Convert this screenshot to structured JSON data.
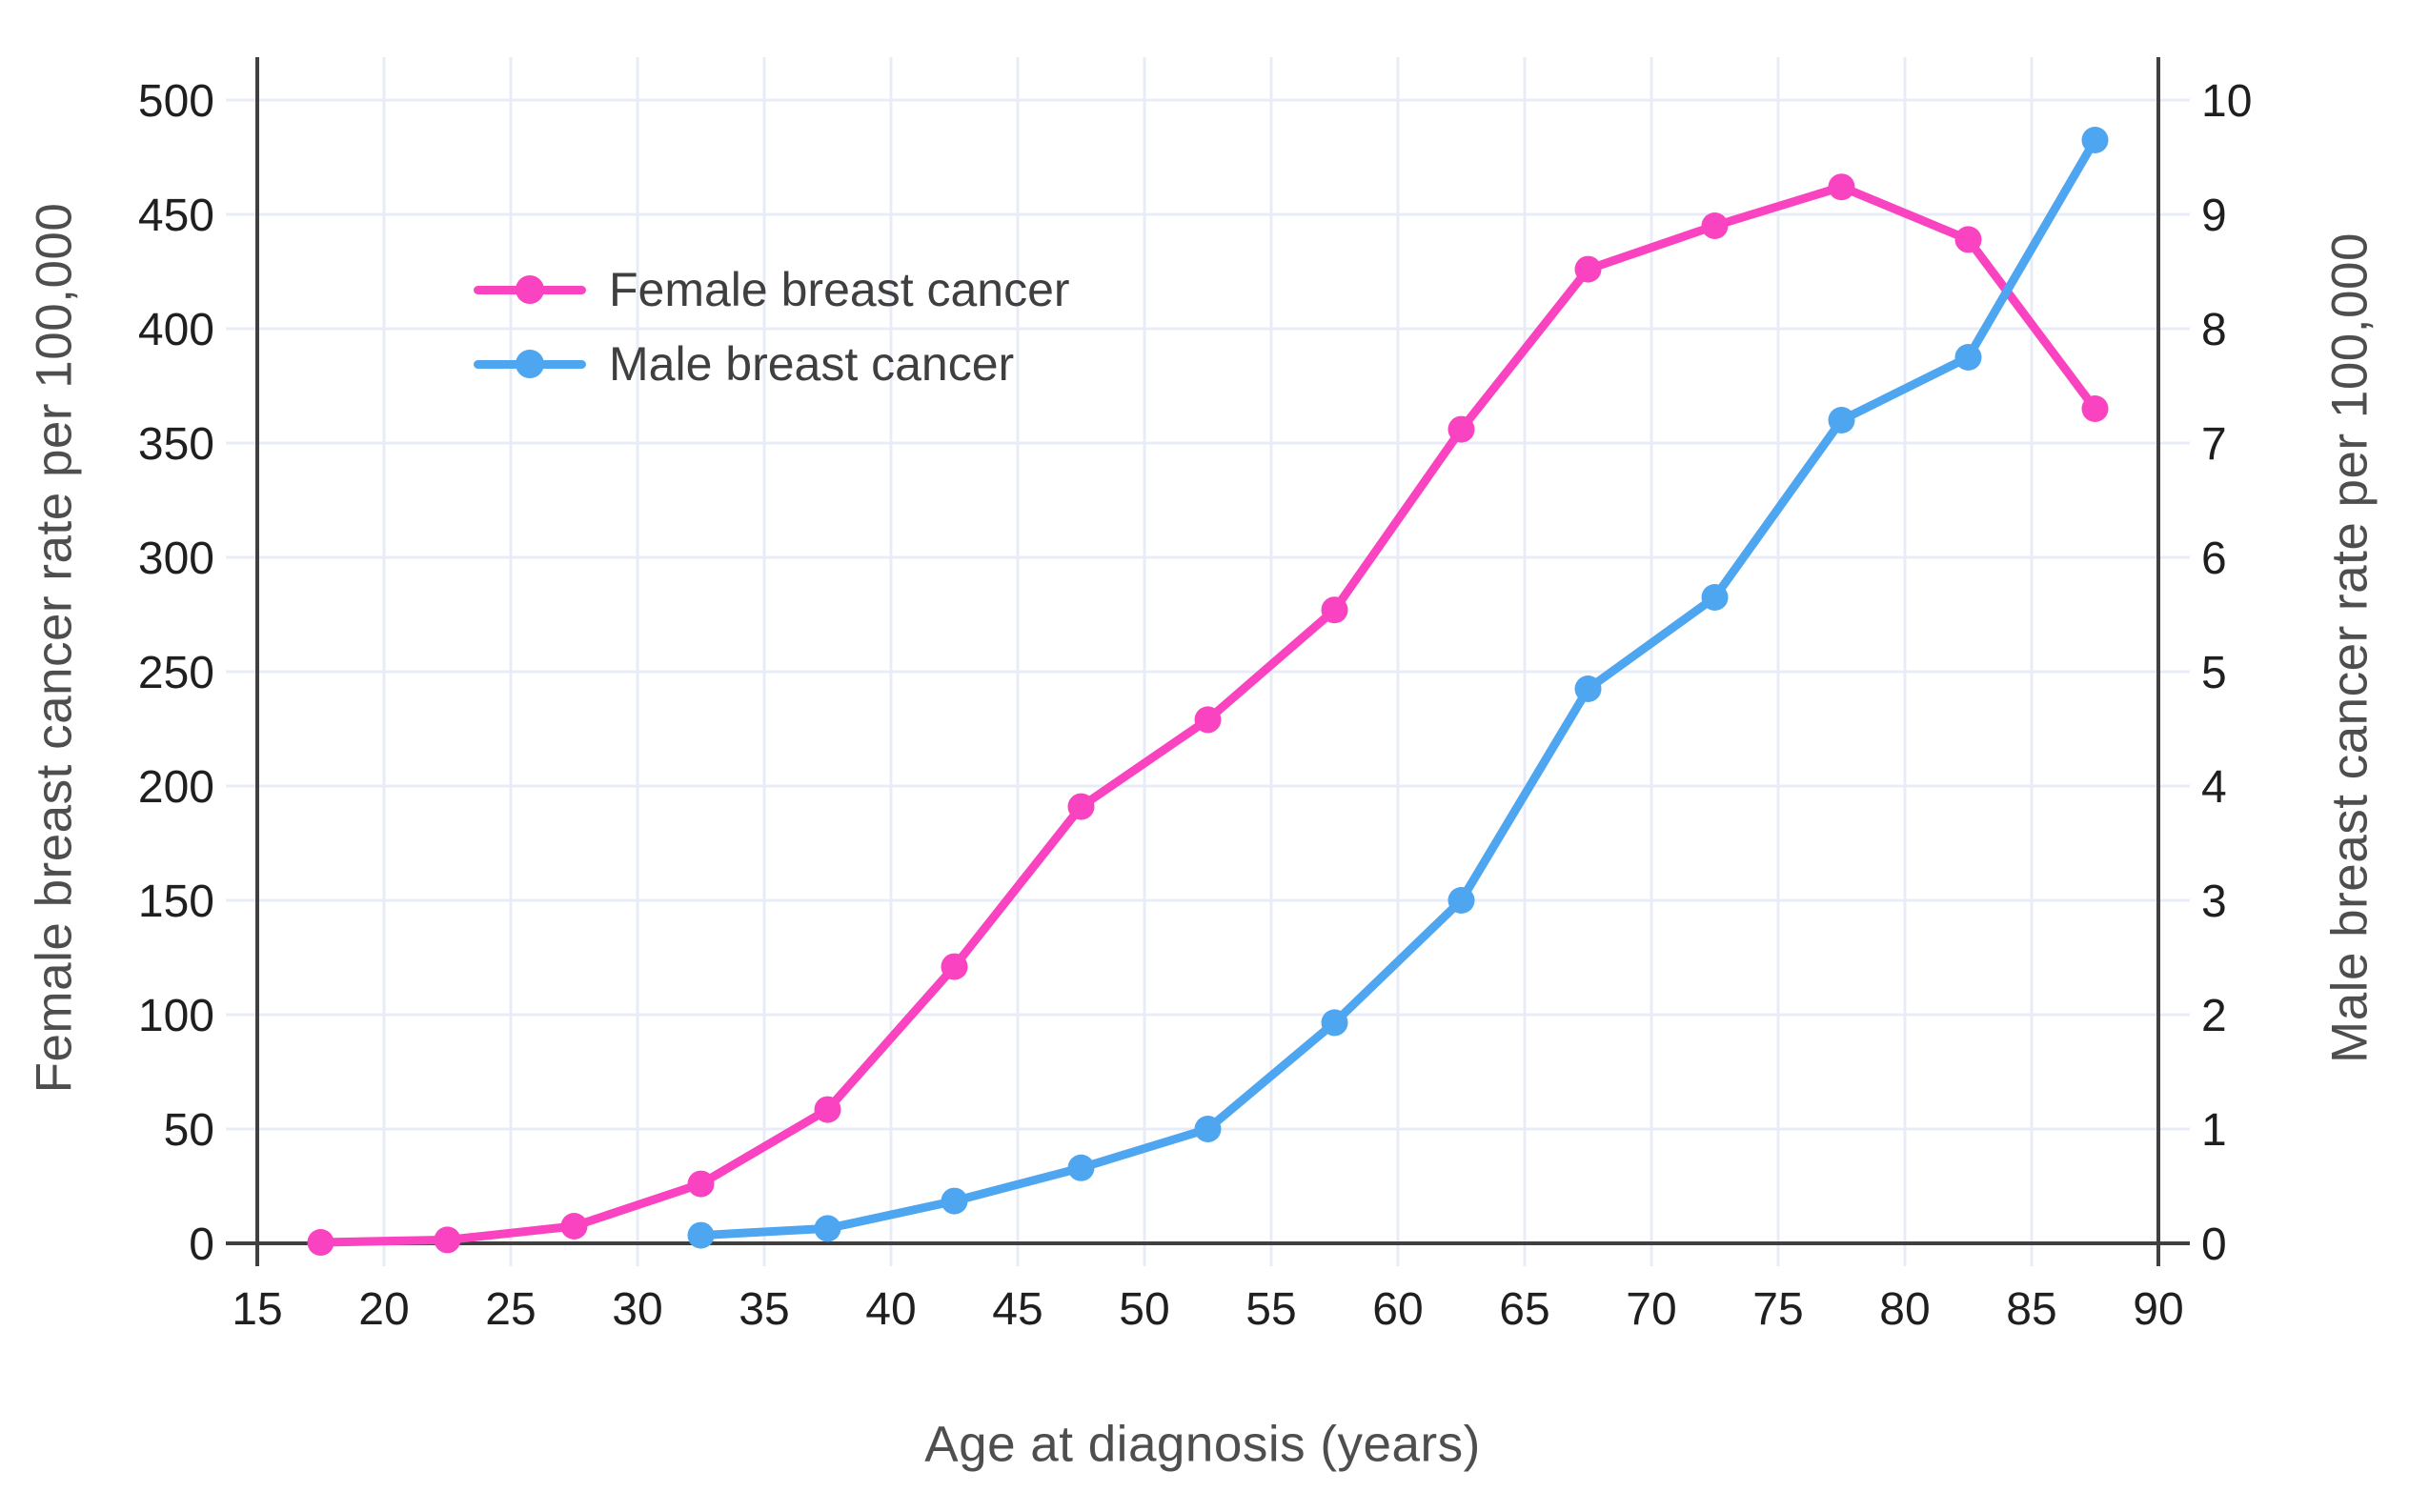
{
  "chart_data": {
    "type": "line",
    "title": "",
    "xlabel": "Age at diagnosis (years)",
    "ylabel_left": "Female breast cancer rate per 100,000",
    "ylabel_right": "Male breast cancer rate per 100,000",
    "xlim": [
      15,
      90
    ],
    "xticks": [
      15,
      20,
      25,
      30,
      35,
      40,
      45,
      50,
      55,
      60,
      65,
      70,
      75,
      80,
      85,
      90
    ],
    "ylim_left": [
      0,
      500
    ],
    "yticks_left": [
      0,
      50,
      100,
      150,
      200,
      250,
      300,
      350,
      400,
      450,
      500
    ],
    "ylim_right": [
      0,
      10
    ],
    "yticks_right": [
      0,
      1,
      2,
      3,
      4,
      5,
      6,
      7,
      8,
      9,
      10
    ],
    "grid": true,
    "legend_position": "top-left",
    "series": [
      {
        "name": "Female breast cancer",
        "axis": "left",
        "color": "#f943c0",
        "x": [
          17.5,
          22.5,
          27.5,
          32.5,
          37.5,
          42.5,
          47.5,
          52.5,
          57.5,
          62.5,
          67.5,
          72.5,
          77.5,
          82.5,
          87.5
        ],
        "values": [
          0.4,
          1.5,
          7.5,
          26,
          58.5,
          121,
          191,
          229,
          277,
          356,
          426,
          445,
          462,
          439,
          365
        ]
      },
      {
        "name": "Male breast cancer",
        "axis": "right",
        "color": "#4ea5f0",
        "x": [
          32.5,
          37.5,
          42.5,
          47.5,
          52.5,
          57.5,
          62.5,
          67.5,
          72.5,
          77.5,
          82.5,
          87.5
        ],
        "values": [
          0.07,
          0.13,
          0.37,
          0.66,
          1.0,
          1.93,
          3.0,
          4.85,
          5.65,
          7.2,
          7.75,
          9.65
        ]
      }
    ],
    "colors": {
      "female": "#f943c0",
      "male": "#4ea5f0",
      "grid": "#e8ecf7",
      "axis_line": "#404040",
      "tick_label": "#1f1f1f",
      "axis_title": "#4e4e4e"
    }
  },
  "legend": {
    "items": [
      {
        "label": "Female breast cancer"
      },
      {
        "label": "Male breast cancer"
      }
    ]
  }
}
